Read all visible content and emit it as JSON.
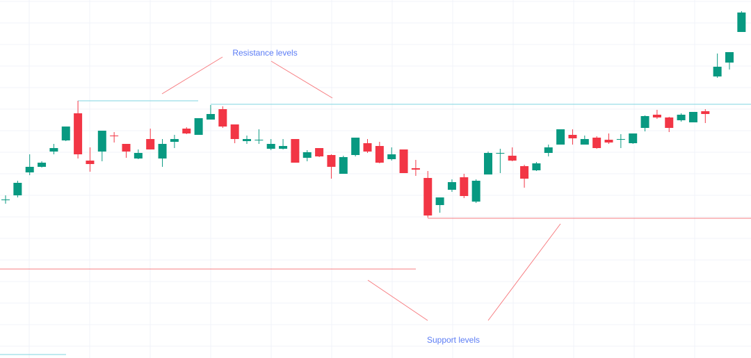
{
  "chart_data": {
    "type": "candlestick",
    "up_color": "#089981",
    "down_color": "#f23645",
    "ylim": [
      0,
      515
    ],
    "open": [
      228,
      234,
      267,
      275,
      297,
      313,
      352,
      284,
      297,
      320,
      308,
      287,
      315,
      287,
      311,
      330,
      321,
      343,
      358,
      336,
      312,
      314,
      301,
      301,
      315,
      288,
      302,
      292,
      265,
      292,
      309,
      305,
      286,
      300,
      273,
      259,
      220,
      242,
      260,
      225,
      264,
      294,
      291,
      276,
      270,
      295,
      307,
      321,
      307,
      317,
      314,
      314,
      309,
      331,
      350,
      346,
      342,
      339,
      355,
      405,
      425,
      469
    ],
    "high": [
      234,
      255,
      293,
      283,
      308,
      333,
      370,
      303,
      327,
      325,
      308,
      300,
      330,
      315,
      321,
      332,
      345,
      364,
      362,
      336,
      320,
      329,
      315,
      315,
      315,
      299,
      302,
      293,
      291,
      317,
      315,
      311,
      303,
      300,
      285,
      269,
      231,
      257,
      265,
      257,
      297,
      301,
      303,
      278,
      282,
      307,
      329,
      329,
      320,
      319,
      323,
      322,
      323,
      349,
      357,
      347,
      352,
      354,
      358,
      438,
      440,
      499
    ],
    "low": [
      222,
      231,
      263,
      274,
      293,
      312,
      287,
      268,
      283,
      310,
      288,
      286,
      300,
      275,
      302,
      322,
      321,
      343,
      331,
      309,
      308,
      308,
      299,
      300,
      281,
      283,
      289,
      258,
      265,
      290,
      295,
      280,
      284,
      266,
      262,
      202,
      209,
      239,
      230,
      223,
      264,
      266,
      283,
      245,
      269,
      290,
      307,
      307,
      307,
      301,
      308,
      302,
      308,
      326,
      344,
      325,
      340,
      339,
      338,
      403,
      415,
      469
    ],
    "close": [
      228,
      252,
      275,
      281,
      302,
      333,
      293,
      279,
      327,
      319,
      297,
      295,
      300,
      308,
      315,
      323,
      345,
      351,
      333,
      315,
      315,
      314,
      308,
      305,
      281,
      296,
      290,
      275,
      289,
      317,
      297,
      281,
      293,
      266,
      271,
      205,
      231,
      253,
      233,
      255,
      295,
      295,
      284,
      258,
      280,
      303,
      329,
      316,
      315,
      302,
      310,
      315,
      323,
      348,
      346,
      331,
      350,
      354,
      351,
      419,
      440,
      497
    ],
    "lines": [
      {
        "value": 370,
        "color": "#7fd6e0"
      },
      {
        "value": 365,
        "color": "#7fd6e0"
      },
      {
        "value": 128,
        "color": "#f77c80"
      },
      {
        "value": 201,
        "color": "#f77c80"
      },
      {
        "value": 5,
        "color": "#7fd6e0"
      }
    ],
    "annotations": [
      "Resistance levels",
      "Support levels"
    ]
  }
}
